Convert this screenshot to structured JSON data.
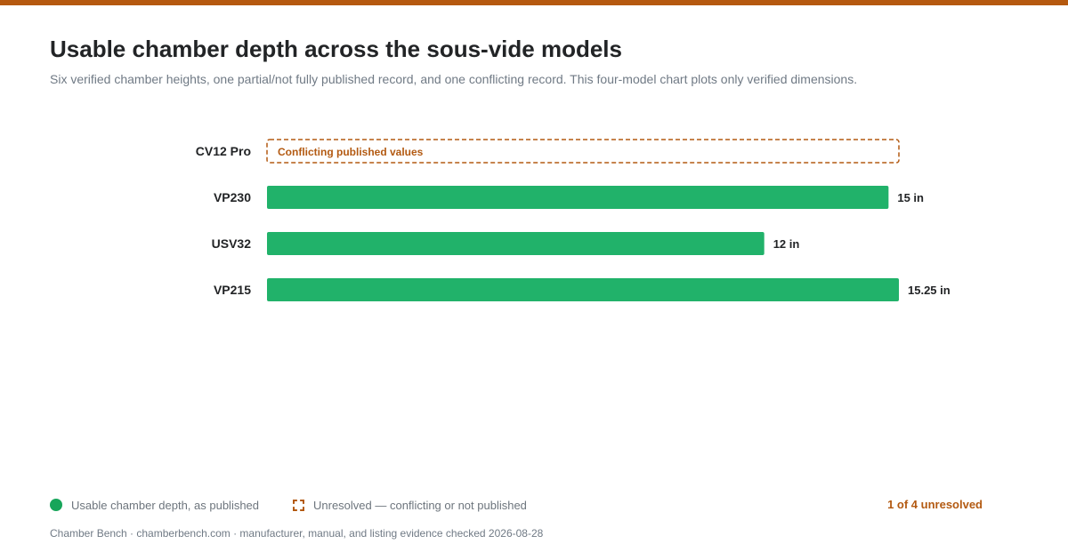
{
  "header": {
    "title": "Usable chamber depth across the sous-vide models",
    "subtitle": "Six verified chamber heights, one partial/not fully published record, and one conflicting record. This four-model chart plots only verified dimensions."
  },
  "colors": {
    "accent": "#b5590f",
    "bar": "#21b26a",
    "legend_dot": "#17a55a",
    "unresolved": "#b35a12"
  },
  "chart_data": {
    "type": "bar",
    "orientation": "horizontal",
    "title": "Usable chamber depth across the sous-vide models",
    "xlabel": "",
    "ylabel": "",
    "unit": "in",
    "xlim": [
      0,
      15.25
    ],
    "grid": false,
    "legend_position": "bottom",
    "categories": [
      "CV12 Pro",
      "VP230",
      "USV32",
      "VP215"
    ],
    "values": [
      null,
      15,
      12,
      15.25
    ],
    "value_labels": [
      "",
      "15 in",
      "12 in",
      "15.25 in"
    ],
    "status": [
      "conflicting",
      "verified",
      "verified",
      "verified"
    ],
    "unresolved_label": "Conflicting published values"
  },
  "legend": {
    "items": [
      {
        "label": "Usable chamber depth, as published",
        "marker": "filled-circle"
      },
      {
        "label": "Unresolved — conflicting or not published",
        "marker": "dashed-square"
      }
    ],
    "unresolved_count": "1 of 4 unresolved"
  },
  "footer": {
    "source": "Chamber Bench · chamberbench.com · manufacturer, manual, and listing evidence checked 2026-08-28"
  }
}
